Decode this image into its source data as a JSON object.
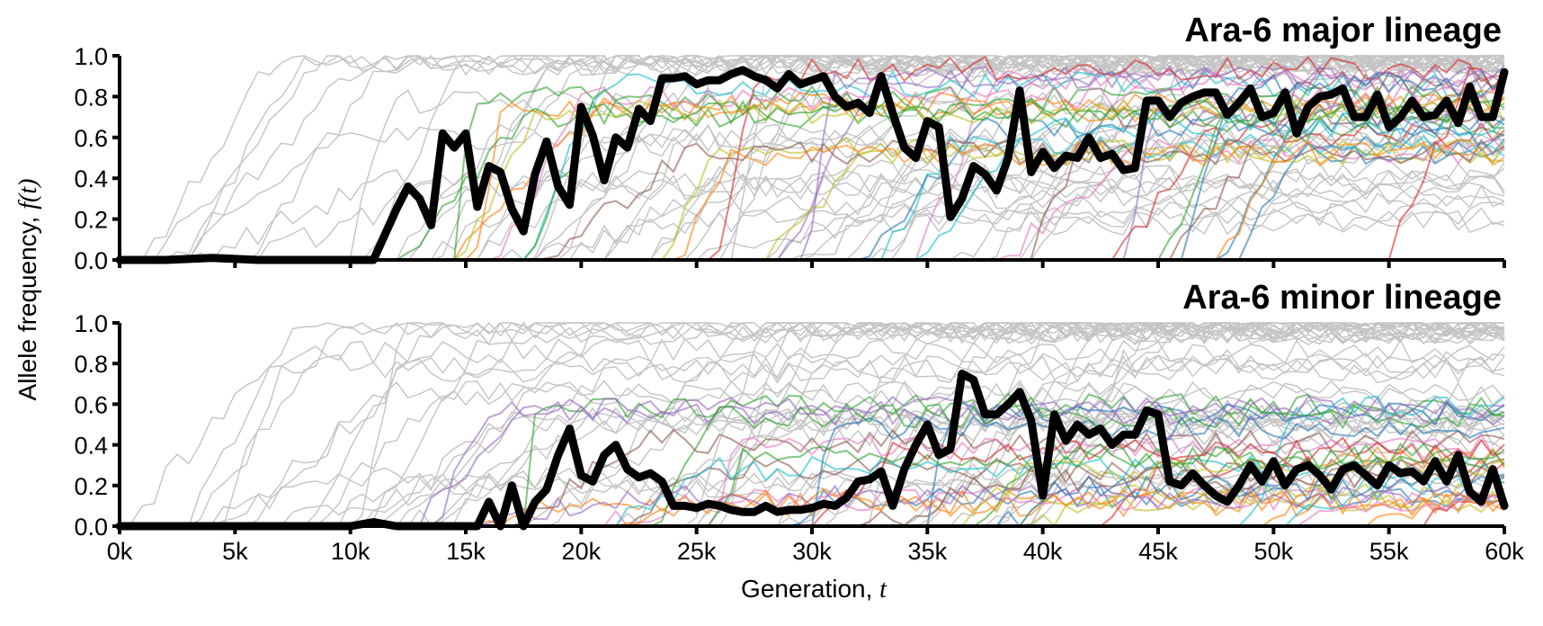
{
  "chart_data": [
    {
      "type": "line",
      "title": "Ara-6 major lineage",
      "xlabel": "",
      "ylabel": "",
      "ylim": [
        0,
        1
      ],
      "xlim": [
        0,
        60000
      ],
      "grid": false,
      "yticks": [
        "0.0",
        "0.2",
        "0.4",
        "0.6",
        "0.8",
        "1.0"
      ],
      "xticks": [],
      "highlight_series": {
        "color": "#000000",
        "x": [
          0,
          2000,
          4000,
          6000,
          8000,
          10000,
          11000,
          12000,
          12500,
          13000,
          13500,
          14000,
          14500,
          15000,
          15500,
          16000,
          16500,
          17000,
          17500,
          18000,
          18500,
          19000,
          19500,
          20000,
          20500,
          21000,
          21500,
          22000,
          22500,
          23000,
          23500,
          24000,
          24500,
          25000,
          25500,
          26000,
          26500,
          27000,
          27500,
          28000,
          28500,
          29000,
          29500,
          30000,
          30500,
          31000,
          31500,
          32000,
          32500,
          33000,
          33500,
          34000,
          34500,
          35000,
          35500,
          36000,
          36500,
          37000,
          37500,
          38000,
          38500,
          39000,
          39500,
          40000,
          40500,
          41000,
          41500,
          42000,
          42500,
          43000,
          43500,
          44000,
          44500,
          45000,
          45500,
          46000,
          46500,
          47000,
          47500,
          48000,
          48500,
          49000,
          49500,
          50000,
          50500,
          51000,
          51500,
          52000,
          52500,
          53000,
          53500,
          54000,
          54500,
          55000,
          55500,
          56000,
          56500,
          57000,
          57500,
          58000,
          58500,
          59000,
          59500,
          60000
        ],
        "y": [
          0.0,
          0.0,
          0.01,
          0.0,
          0.0,
          0.0,
          0.0,
          0.25,
          0.36,
          0.3,
          0.17,
          0.62,
          0.55,
          0.62,
          0.26,
          0.46,
          0.43,
          0.25,
          0.14,
          0.42,
          0.58,
          0.36,
          0.27,
          0.75,
          0.61,
          0.39,
          0.6,
          0.55,
          0.74,
          0.68,
          0.89,
          0.89,
          0.9,
          0.86,
          0.88,
          0.88,
          0.91,
          0.93,
          0.9,
          0.88,
          0.84,
          0.91,
          0.86,
          0.88,
          0.9,
          0.8,
          0.75,
          0.77,
          0.72,
          0.9,
          0.72,
          0.55,
          0.5,
          0.68,
          0.65,
          0.21,
          0.3,
          0.46,
          0.42,
          0.34,
          0.5,
          0.83,
          0.43,
          0.53,
          0.45,
          0.51,
          0.5,
          0.6,
          0.5,
          0.52,
          0.44,
          0.45,
          0.78,
          0.78,
          0.7,
          0.77,
          0.8,
          0.82,
          0.82,
          0.71,
          0.77,
          0.84,
          0.7,
          0.72,
          0.82,
          0.62,
          0.75,
          0.8,
          0.81,
          0.84,
          0.7,
          0.7,
          0.81,
          0.65,
          0.7,
          0.78,
          0.7,
          0.71,
          0.78,
          0.67,
          0.85,
          0.7,
          0.7,
          0.92
        ]
      }
    },
    {
      "type": "line",
      "title": "Ara-6 minor lineage",
      "xlabel": "Generation, t",
      "ylabel": "Allele frequency, f(t)",
      "ylim": [
        0,
        1
      ],
      "xlim": [
        0,
        60000
      ],
      "grid": false,
      "yticks": [
        "0.0",
        "0.2",
        "0.4",
        "0.6",
        "0.8",
        "1.0"
      ],
      "xticks": [
        "0k",
        "5k",
        "10k",
        "15k",
        "20k",
        "25k",
        "30k",
        "35k",
        "40k",
        "45k",
        "50k",
        "55k",
        "60k"
      ],
      "highlight_series": {
        "color": "#000000",
        "x": [
          0,
          2000,
          4000,
          6000,
          8000,
          10000,
          11000,
          12000,
          13000,
          14000,
          15000,
          15500,
          16000,
          16500,
          17000,
          17500,
          18000,
          18500,
          19000,
          19500,
          20000,
          20500,
          21000,
          21500,
          22000,
          22500,
          23000,
          23500,
          24000,
          24500,
          25000,
          25500,
          26000,
          26500,
          27000,
          27500,
          28000,
          28500,
          29000,
          29500,
          30000,
          30500,
          31000,
          31500,
          32000,
          32500,
          33000,
          33500,
          34000,
          34500,
          35000,
          35500,
          36000,
          36500,
          37000,
          37500,
          38000,
          38500,
          39000,
          39500,
          40000,
          40500,
          41000,
          41500,
          42000,
          42500,
          43000,
          43500,
          44000,
          44500,
          45000,
          45500,
          46000,
          46500,
          47000,
          47500,
          48000,
          48500,
          49000,
          49500,
          50000,
          50500,
          51000,
          51500,
          52000,
          52500,
          53000,
          53500,
          54000,
          54500,
          55000,
          55500,
          56000,
          56500,
          57000,
          57500,
          58000,
          58500,
          59000,
          59500,
          60000
        ],
        "y": [
          0.0,
          0.0,
          0.0,
          0.0,
          0.0,
          0.0,
          0.02,
          0.0,
          0.0,
          0.0,
          0.0,
          0.0,
          0.12,
          0.0,
          0.2,
          0.0,
          0.12,
          0.18,
          0.35,
          0.48,
          0.25,
          0.22,
          0.35,
          0.4,
          0.28,
          0.24,
          0.26,
          0.22,
          0.1,
          0.1,
          0.09,
          0.11,
          0.1,
          0.08,
          0.07,
          0.07,
          0.1,
          0.07,
          0.08,
          0.08,
          0.09,
          0.11,
          0.1,
          0.14,
          0.22,
          0.23,
          0.27,
          0.1,
          0.28,
          0.4,
          0.5,
          0.35,
          0.38,
          0.75,
          0.72,
          0.55,
          0.55,
          0.6,
          0.66,
          0.52,
          0.15,
          0.55,
          0.42,
          0.5,
          0.45,
          0.48,
          0.4,
          0.45,
          0.45,
          0.57,
          0.55,
          0.22,
          0.2,
          0.26,
          0.2,
          0.15,
          0.12,
          0.2,
          0.3,
          0.22,
          0.32,
          0.2,
          0.28,
          0.3,
          0.25,
          0.18,
          0.28,
          0.3,
          0.25,
          0.2,
          0.3,
          0.26,
          0.27,
          0.22,
          0.32,
          0.22,
          0.35,
          0.17,
          0.12,
          0.28,
          0.1
        ]
      }
    }
  ],
  "colors": {
    "highlight": "#000000",
    "background_trajectories": "#c4c4c4",
    "palette": [
      "#1f77b4",
      "#ff7f0e",
      "#2ca02c",
      "#d62728",
      "#9467bd",
      "#8c564b",
      "#e377c2",
      "#bcbd22",
      "#17becf"
    ]
  },
  "axes": {
    "shared_ylabel": "Allele frequency, f(t)",
    "ylabel_main": "Allele frequency, ",
    "ylabel_var": "f(t)",
    "xlabel_main": "Generation, ",
    "xlabel_var": "t"
  }
}
